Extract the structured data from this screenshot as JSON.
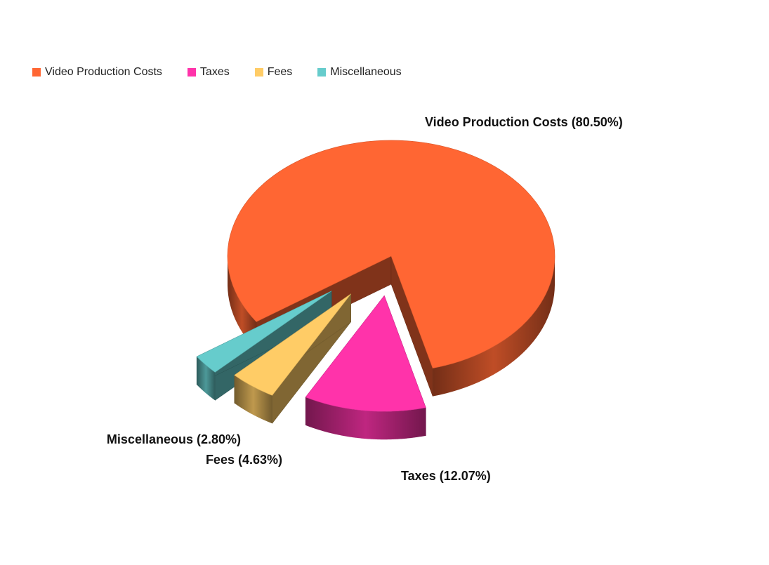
{
  "chart_data": {
    "type": "pie",
    "title": "",
    "legend_position": "top-left",
    "slices": [
      {
        "name": "Video Production Costs",
        "value": 80.5,
        "label": "Video Production Costs (80.50%)",
        "color": "#ff6633"
      },
      {
        "name": "Taxes",
        "value": 12.07,
        "label": "Taxes (12.07%)",
        "color": "#ff33aa"
      },
      {
        "name": "Fees",
        "value": 4.63,
        "label": "Fees (4.63%)",
        "color": "#ffcc66"
      },
      {
        "name": "Miscellaneous",
        "value": 2.8,
        "label": "Miscellaneous (2.80%)",
        "color": "#66cccc"
      }
    ]
  }
}
